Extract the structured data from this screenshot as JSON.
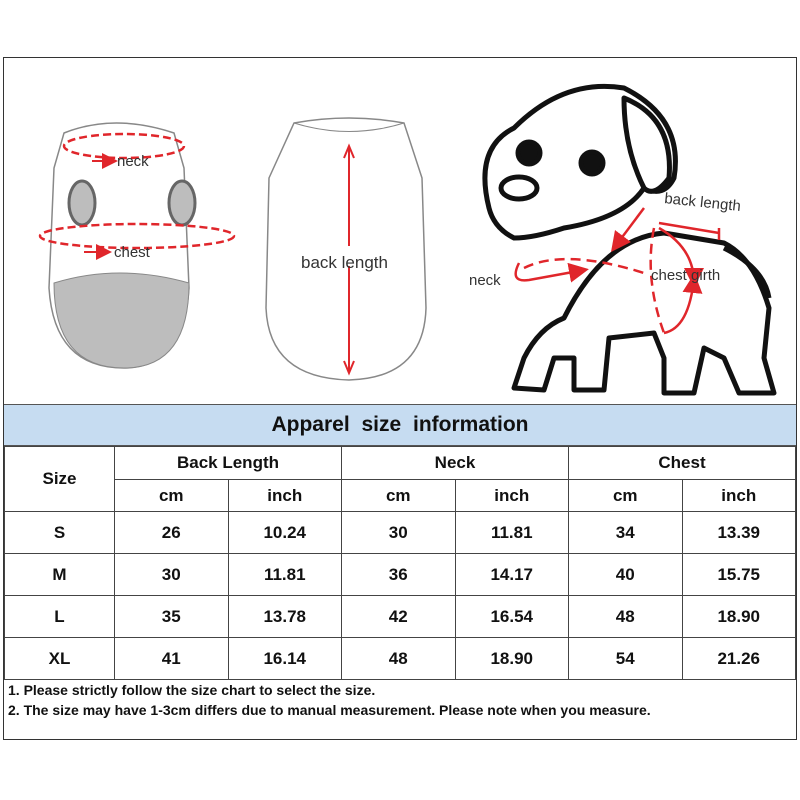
{
  "illustration": {
    "vest_front_labels": {
      "neck": "neck",
      "chest": "chest"
    },
    "vest_back_label": "back length",
    "dog_labels": {
      "back_length": "back length",
      "neck": "neck",
      "chest_girth": "chest girth"
    },
    "accent_color": "#e0262b"
  },
  "table": {
    "title": "Apparel  size  information",
    "title_bg": "#c6dcf1",
    "size_header": "Size",
    "groups": [
      "Back Length",
      "Neck",
      "Chest"
    ],
    "units": [
      "cm",
      "inch",
      "cm",
      "inch",
      "cm",
      "inch"
    ],
    "rows": [
      {
        "size": "S",
        "values": [
          "26",
          "10.24",
          "30",
          "11.81",
          "34",
          "13.39"
        ]
      },
      {
        "size": "M",
        "values": [
          "30",
          "11.81",
          "36",
          "14.17",
          "40",
          "15.75"
        ]
      },
      {
        "size": "L",
        "values": [
          "35",
          "13.78",
          "42",
          "16.54",
          "48",
          "18.90"
        ]
      },
      {
        "size": "XL",
        "values": [
          "41",
          "16.14",
          "48",
          "18.90",
          "54",
          "21.26"
        ]
      }
    ]
  },
  "notes": [
    "1. Please strictly follow the size chart  to select the size.",
    "2. The size may have 1-3cm differs due to manual measurement. Please note when you measure."
  ]
}
